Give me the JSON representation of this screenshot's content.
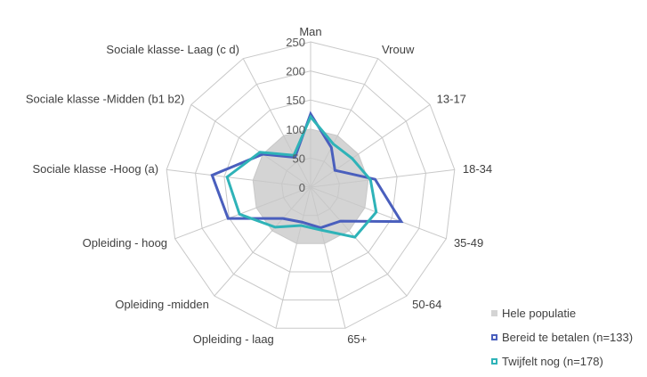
{
  "chart_data": {
    "type": "radar",
    "title": "",
    "categories": [
      "Man",
      "Vrouw",
      "13-17",
      "18-34",
      "35-49",
      "50-64",
      "65+",
      "Opleiding - laag",
      "Opleiding -midden",
      "Opleiding - hoog",
      "Sociale klasse -Hoog (a)",
      "Sociale klasse -Midden (b1 b2)",
      "Sociale klasse- Laag (c d)"
    ],
    "rlim": [
      0,
      250
    ],
    "ticks": [
      "0",
      "50",
      "100",
      "150",
      "200",
      "250"
    ],
    "tick_values": [
      0,
      50,
      100,
      150,
      200,
      250
    ],
    "grid": true,
    "legend_position": "bottom-right",
    "series": [
      {
        "name": "Hele populatie",
        "color": "#d4d4d4",
        "style": "fill",
        "values": [
          100,
          100,
          100,
          100,
          100,
          100,
          100,
          100,
          100,
          100,
          100,
          100,
          100
        ]
      },
      {
        "name": "Bereid te betalen (n=133)",
        "color": "#4a5fbd",
        "style": "line",
        "values": [
          126,
          77,
          51,
          112,
          167,
          78,
          72,
          62,
          72,
          152,
          171,
          100,
          58
        ]
      },
      {
        "name": "Twijfelt nog (n=178)",
        "color": "#2fb3b8",
        "style": "line",
        "values": [
          121,
          84,
          87,
          104,
          121,
          115,
          76,
          68,
          92,
          131,
          145,
          106,
          62
        ]
      }
    ]
  }
}
